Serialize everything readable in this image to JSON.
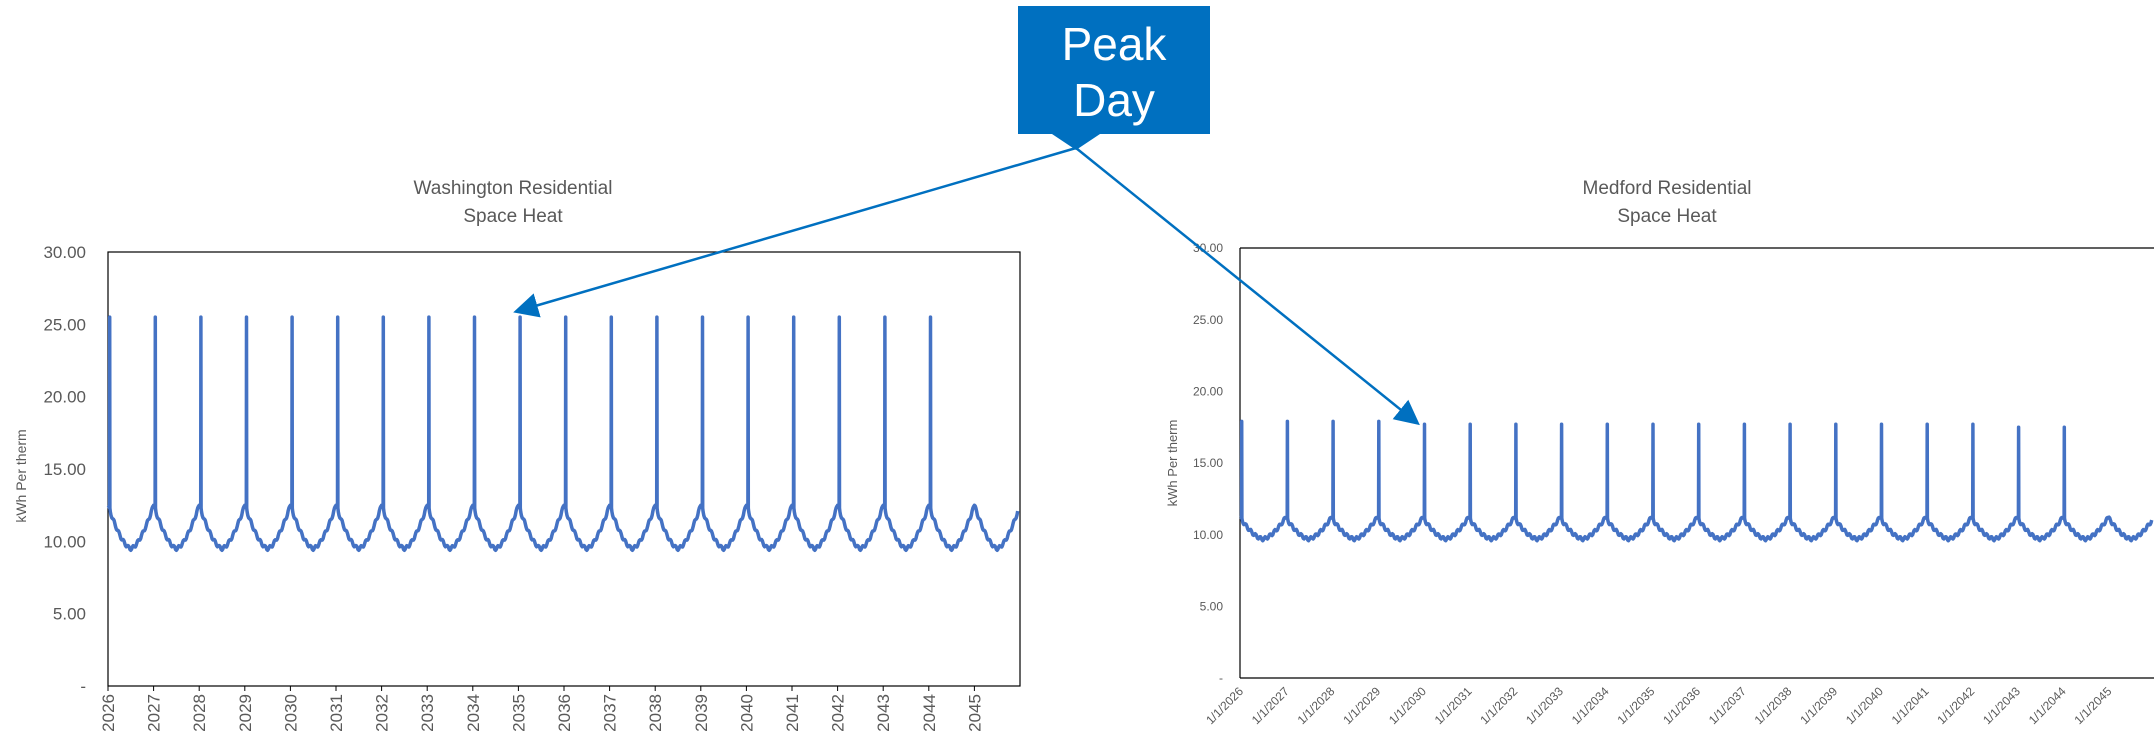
{
  "callout": {
    "line1": "Peak",
    "line2": "Day",
    "color": "#0070c0"
  },
  "chart_data": [
    {
      "type": "line",
      "title_line1": "Washington Residential",
      "title_line2": "Space Heat",
      "ylabel": "kWh Per therm",
      "ylim": [
        0,
        30
      ],
      "y_ticks": [
        "-",
        "5.00",
        "10.00",
        "15.00",
        "20.00",
        "25.00",
        "30.00"
      ],
      "x_ticks": [
        "2026",
        "2027",
        "2028",
        "2029",
        "2030",
        "2031",
        "2032",
        "2033",
        "2034",
        "2035",
        "2036",
        "2037",
        "2038",
        "2039",
        "2040",
        "2041",
        "2042",
        "2043",
        "2044",
        "2045"
      ],
      "x_start_year": 2026,
      "x_end_year": 2046,
      "series_color": "#4472c4",
      "peak_value": 25.5,
      "winter_high": 12.5,
      "summer_low": 9.5,
      "peak_day_annotated_year": "2035"
    },
    {
      "type": "line",
      "title_line1": "Medford Residential",
      "title_line2": "Space Heat",
      "ylabel": "kWh Per therm",
      "ylim": [
        0,
        30
      ],
      "y_ticks": [
        "-",
        "5.00",
        "10.00",
        "15.00",
        "20.00",
        "25.00",
        "30.00"
      ],
      "x_ticks": [
        "1/1/2026",
        "1/1/2027",
        "1/1/2028",
        "1/1/2029",
        "1/1/2030",
        "1/1/2031",
        "1/1/2032",
        "1/1/2033",
        "1/1/2034",
        "1/1/2035",
        "1/1/2036",
        "1/1/2037",
        "1/1/2038",
        "1/1/2039",
        "1/1/2040",
        "1/1/2041",
        "1/1/2042",
        "1/1/2043",
        "1/1/2044",
        "1/1/2045"
      ],
      "x_start_year": 2026,
      "x_end_year": 2046,
      "series_color": "#4472c4",
      "peak_values": [
        17.9,
        17.9,
        17.9,
        17.9,
        17.7,
        17.7,
        17.7,
        17.7,
        17.7,
        17.7,
        17.7,
        17.7,
        17.7,
        17.7,
        17.7,
        17.7,
        17.7,
        17.5,
        17.5
      ],
      "winter_high": 11.2,
      "summer_low": 9.7,
      "peak_day_annotated_year": "2030"
    }
  ]
}
